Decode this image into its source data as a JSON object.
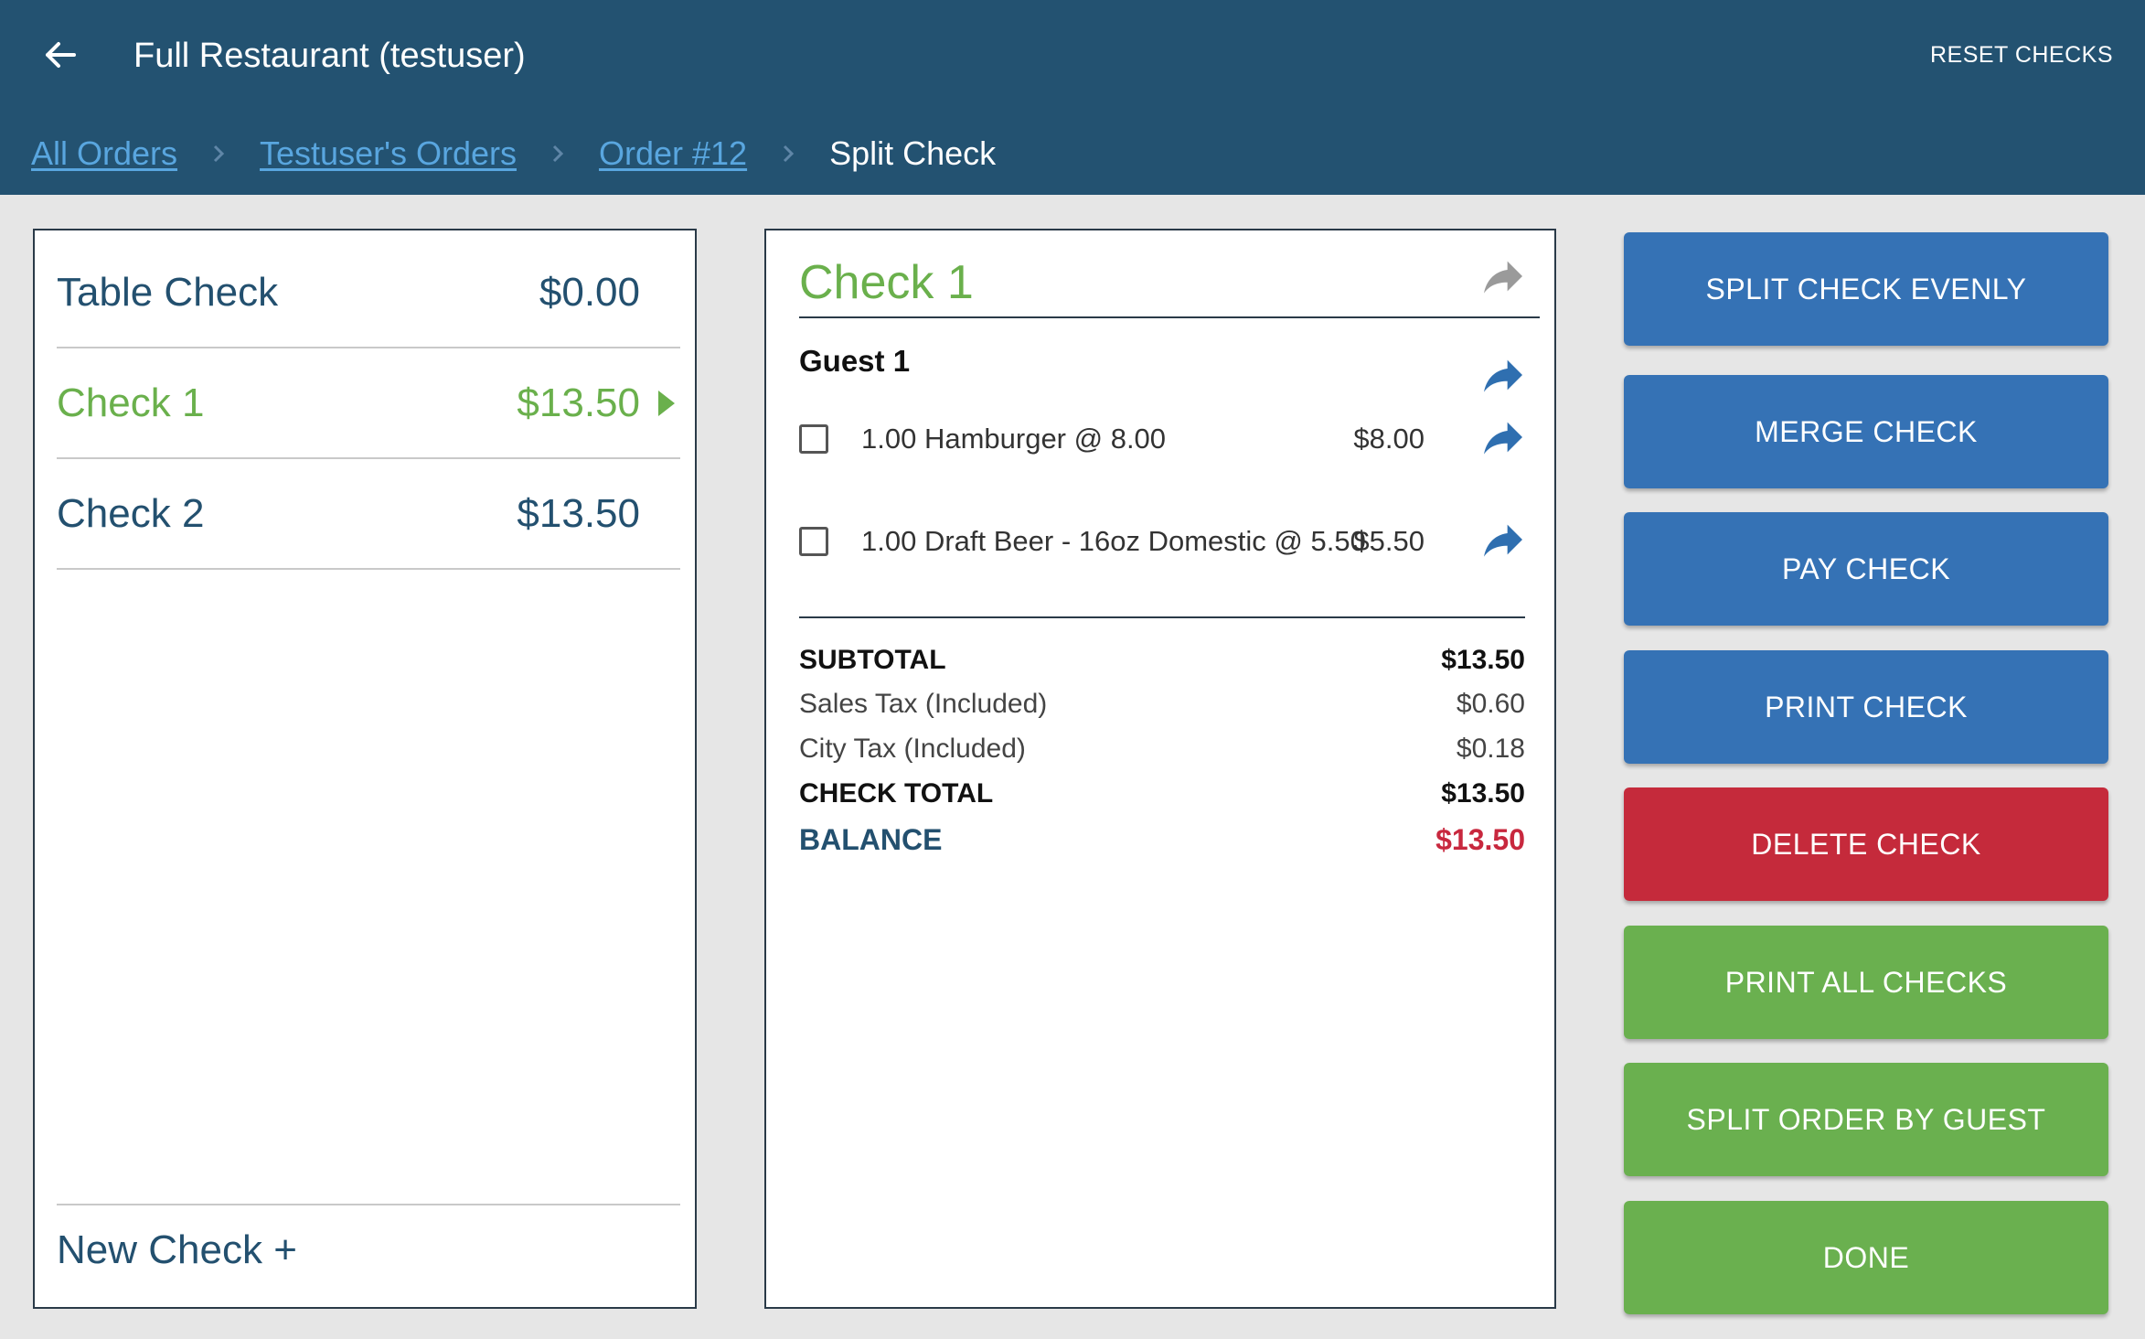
{
  "header": {
    "title": "Full Restaurant (testuser)",
    "reset_label": "RESET CHECKS",
    "back_icon": "arrow-left-icon"
  },
  "breadcrumb": {
    "items": [
      {
        "label": "All Orders",
        "link": true
      },
      {
        "label": "Testuser's Orders",
        "link": true
      },
      {
        "label": "Order #12",
        "link": true
      },
      {
        "label": "Split Check",
        "link": false
      }
    ]
  },
  "checks": {
    "items": [
      {
        "name": "Table Check",
        "amount": "$0.00",
        "active": false
      },
      {
        "name": "Check 1",
        "amount": "$13.50",
        "active": true
      },
      {
        "name": "Check 2",
        "amount": "$13.50",
        "active": false
      }
    ],
    "new_check_label": "New Check +"
  },
  "detail": {
    "title": "Check 1",
    "guest": "Guest 1",
    "items": [
      {
        "description": "1.00 Hamburger @  8.00",
        "price": "$8.00",
        "checked": false
      },
      {
        "description": "1.00 Draft Beer - 16oz Domestic @  5.50",
        "price": "$5.50",
        "checked": false
      }
    ],
    "totals": {
      "subtotal_label": "SUBTOTAL",
      "subtotal": "$13.50",
      "sales_tax_label": "Sales Tax (Included)",
      "sales_tax": "$0.60",
      "city_tax_label": "City Tax (Included)",
      "city_tax": "$0.18",
      "check_total_label": "CHECK TOTAL",
      "check_total": "$13.50",
      "balance_label": "BALANCE",
      "balance": "$13.50"
    }
  },
  "actions": {
    "split_evenly": "SPLIT CHECK EVENLY",
    "merge": "MERGE CHECK",
    "pay": "PAY CHECK",
    "print": "PRINT CHECK",
    "delete": "DELETE CHECK",
    "print_all": "PRINT ALL CHECKS",
    "split_by_guest": "SPLIT ORDER BY GUEST",
    "done": "DONE"
  },
  "colors": {
    "header_bg": "#235271",
    "link": "#59a6df",
    "accent_green": "#6ab04c",
    "button_blue": "#3572b5",
    "button_red": "#c52a3b",
    "button_green": "#6ab04f",
    "balance_red": "#c8283e",
    "share_blue": "#2f6fb0",
    "share_gray": "#9a9a9a"
  }
}
